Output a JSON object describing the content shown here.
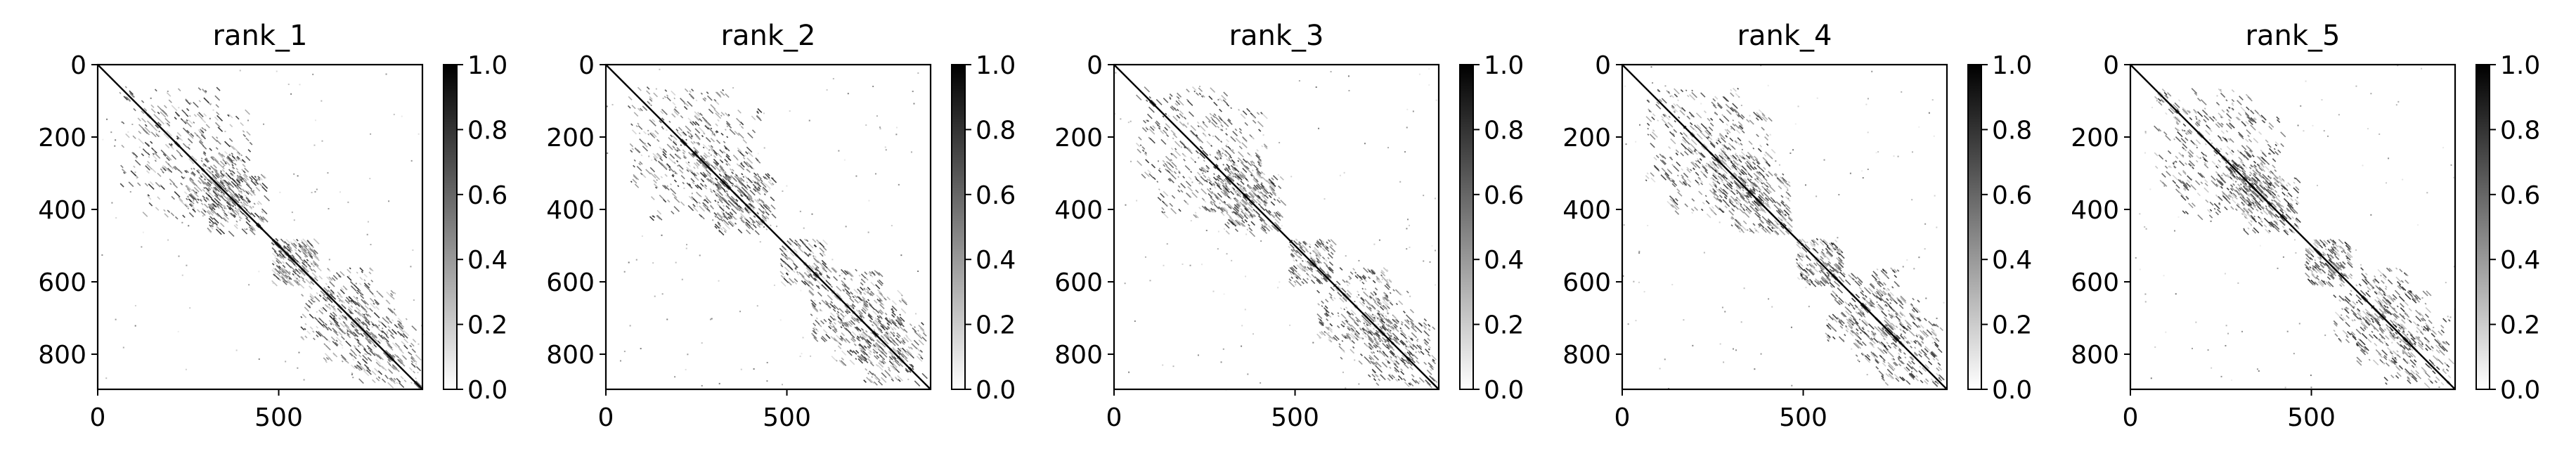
{
  "chart_data": [
    {
      "type": "heatmap",
      "title": "rank_1",
      "x_ticks": [
        "0",
        "500"
      ],
      "y_ticks": [
        "0",
        "200",
        "400",
        "600",
        "800"
      ],
      "xlim": [
        0,
        897
      ],
      "ylim": [
        897,
        0
      ],
      "colorbar": {
        "ticks": [
          "0.0",
          "0.2",
          "0.4",
          "0.6",
          "0.8",
          "1.0"
        ],
        "range": [
          0.0,
          1.0
        ],
        "cmap": "Greys"
      },
      "pattern": {
        "diagonal": true,
        "matrix_size": 897,
        "seed": 11,
        "dominant_value": 0.0,
        "max_value": 1.0
      }
    },
    {
      "type": "heatmap",
      "title": "rank_2",
      "x_ticks": [
        "0",
        "500"
      ],
      "y_ticks": [
        "0",
        "200",
        "400",
        "600",
        "800"
      ],
      "xlim": [
        0,
        897
      ],
      "ylim": [
        897,
        0
      ],
      "colorbar": {
        "ticks": [
          "0.0",
          "0.2",
          "0.4",
          "0.6",
          "0.8",
          "1.0"
        ],
        "range": [
          0.0,
          1.0
        ],
        "cmap": "Greys"
      },
      "pattern": {
        "diagonal": true,
        "matrix_size": 897,
        "seed": 23,
        "dominant_value": 0.0,
        "max_value": 1.0
      }
    },
    {
      "type": "heatmap",
      "title": "rank_3",
      "x_ticks": [
        "0",
        "500"
      ],
      "y_ticks": [
        "0",
        "200",
        "400",
        "600",
        "800"
      ],
      "xlim": [
        0,
        897
      ],
      "ylim": [
        897,
        0
      ],
      "colorbar": {
        "ticks": [
          "0.0",
          "0.2",
          "0.4",
          "0.6",
          "0.8",
          "1.0"
        ],
        "range": [
          0.0,
          1.0
        ],
        "cmap": "Greys"
      },
      "pattern": {
        "diagonal": true,
        "matrix_size": 897,
        "seed": 37,
        "dominant_value": 0.0,
        "max_value": 1.0
      }
    },
    {
      "type": "heatmap",
      "title": "rank_4",
      "x_ticks": [
        "0",
        "500"
      ],
      "y_ticks": [
        "0",
        "200",
        "400",
        "600",
        "800"
      ],
      "xlim": [
        0,
        897
      ],
      "ylim": [
        897,
        0
      ],
      "colorbar": {
        "ticks": [
          "0.0",
          "0.2",
          "0.4",
          "0.6",
          "0.8",
          "1.0"
        ],
        "range": [
          0.0,
          1.0
        ],
        "cmap": "Greys"
      },
      "pattern": {
        "diagonal": true,
        "matrix_size": 897,
        "seed": 41,
        "dominant_value": 0.0,
        "max_value": 1.0
      }
    },
    {
      "type": "heatmap",
      "title": "rank_5",
      "x_ticks": [
        "0",
        "500"
      ],
      "y_ticks": [
        "0",
        "200",
        "400",
        "600",
        "800"
      ],
      "xlim": [
        0,
        897
      ],
      "ylim": [
        897,
        0
      ],
      "colorbar": {
        "ticks": [
          "0.0",
          "0.2",
          "0.4",
          "0.6",
          "0.8",
          "1.0"
        ],
        "range": [
          0.0,
          1.0
        ],
        "cmap": "Greys"
      },
      "pattern": {
        "diagonal": true,
        "matrix_size": 897,
        "seed": 53,
        "dominant_value": 0.0,
        "max_value": 1.0
      }
    }
  ]
}
